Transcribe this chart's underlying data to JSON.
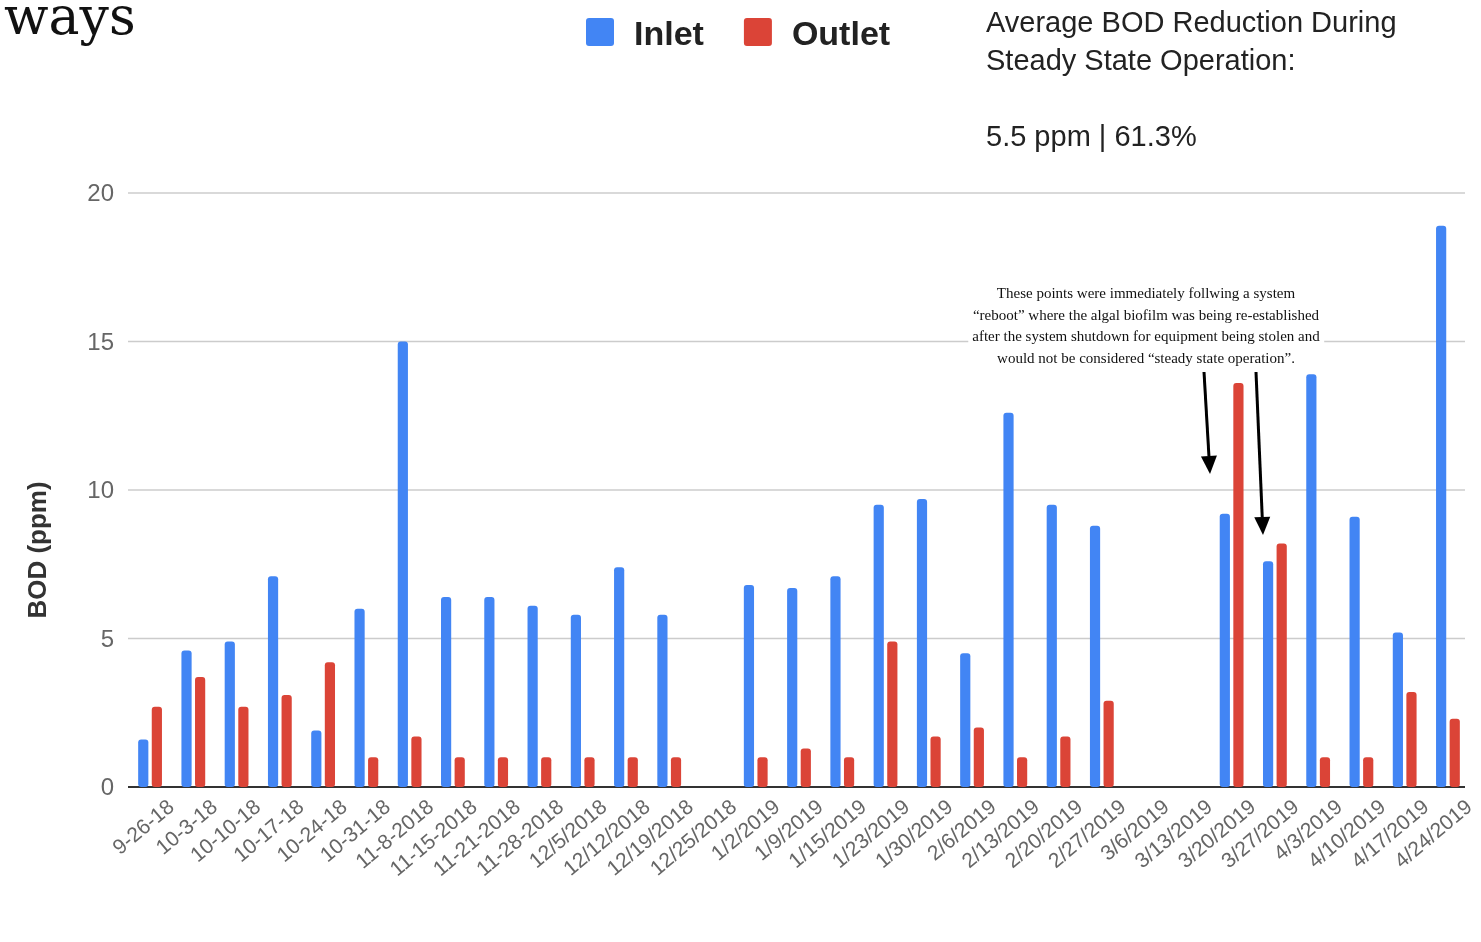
{
  "chart_data": {
    "type": "bar",
    "title": "ways",
    "ylabel": "BOD (ppm)",
    "categories": [
      "9-26-18",
      "10-3-18",
      "10-10-18",
      "10-17-18",
      "10-24-18",
      "10-31-18",
      "11-8-2018",
      "11-15-2018",
      "11-21-2018",
      "11-28-2018",
      "12/5/2018",
      "12/12/2018",
      "12/19/2018",
      "12/25/2018",
      "1/2/2019",
      "1/9/2019",
      "1/15/2019",
      "1/23/2019",
      "1/30/2019",
      "2/6/2019",
      "2/13/2019",
      "2/20/2019",
      "2/27/2019",
      "3/6/2019",
      "3/13/2019",
      "3/20/2019",
      "3/27/2019",
      "4/3/2019",
      "4/10/2019",
      "4/17/2019",
      "4/24/2019"
    ],
    "series": [
      {
        "name": "Inlet",
        "color": "#4285f4",
        "values": [
          1.6,
          4.6,
          4.9,
          7.1,
          1.9,
          6.0,
          15.0,
          6.4,
          6.4,
          6.1,
          5.8,
          7.4,
          5.8,
          null,
          6.8,
          6.7,
          7.1,
          9.5,
          9.7,
          4.5,
          12.6,
          9.5,
          8.8,
          null,
          null,
          9.2,
          7.6,
          13.9,
          9.1,
          5.2,
          18.9
        ]
      },
      {
        "name": "Outlet",
        "color": "#db4437",
        "values": [
          2.7,
          3.7,
          2.7,
          3.1,
          4.2,
          1.0,
          1.7,
          1.0,
          1.0,
          1.0,
          1.0,
          1.0,
          1.0,
          null,
          1.0,
          1.3,
          1.0,
          4.9,
          1.7,
          2.0,
          1.0,
          1.7,
          2.9,
          null,
          null,
          13.6,
          8.2,
          1.0,
          1.0,
          3.2,
          2.3
        ]
      }
    ],
    "ylim": [
      0,
      20
    ],
    "yticks": [
      0,
      5,
      10,
      15,
      20
    ],
    "grid": "y",
    "legend": "top",
    "annotations": [
      "Average BOD Reduction During Steady State Operation:",
      "5.5 ppm | 61.3%",
      "These points were immediately follwing a system “reboot” where the algal biofilm was being re-established after the system shutdown for equipment being stolen and would not be considered “steady state operation”."
    ]
  }
}
